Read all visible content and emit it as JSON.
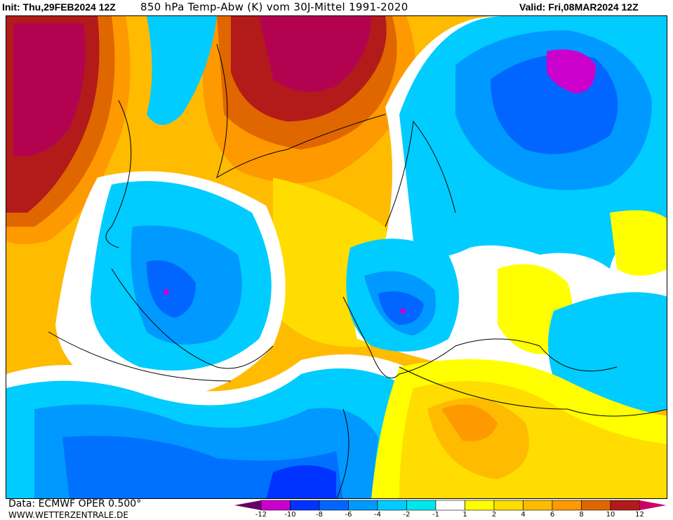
{
  "header": {
    "init_label": "Init: Thu,29FEB2024 12Z",
    "title": "850 hPa Temp-Abw (K) vom 30J-Mittel 1991-2020",
    "valid_label": "Valid: Fri,08MAR2024 12Z"
  },
  "footer": {
    "data_source": "Data: ECMWF OPER 0.500°",
    "website": "WWW.WETTERZENTRALE.DE"
  },
  "legend": {
    "unit": "K",
    "tick_labels": [
      "-12",
      "-10",
      "-8",
      "-6",
      "-4",
      "-2",
      "-1",
      "1",
      "2",
      "4",
      "6",
      "8",
      "10",
      "12"
    ],
    "low_overflow_color": "#660066",
    "high_overflow_color": "#cc0066",
    "bins": [
      {
        "range": "-12..-10",
        "color": "#cc00cc"
      },
      {
        "range": "-10..-8",
        "color": "#0033ff"
      },
      {
        "range": "-8..-6",
        "color": "#0066ff"
      },
      {
        "range": "-6..-4",
        "color": "#0099ff"
      },
      {
        "range": "-4..-2",
        "color": "#00ccff"
      },
      {
        "range": "-2..-1",
        "color": "#00e6ee"
      },
      {
        "range": "-1..1",
        "color": "#ffffff"
      },
      {
        "range": "1..2",
        "color": "#ffff00"
      },
      {
        "range": "2..4",
        "color": "#ffdd00"
      },
      {
        "range": "4..6",
        "color": "#ffbb00"
      },
      {
        "range": "6..8",
        "color": "#ff9900"
      },
      {
        "range": "8..10",
        "color": "#e06600"
      },
      {
        "range": "10..12",
        "color": "#b31a1a"
      }
    ]
  }
}
